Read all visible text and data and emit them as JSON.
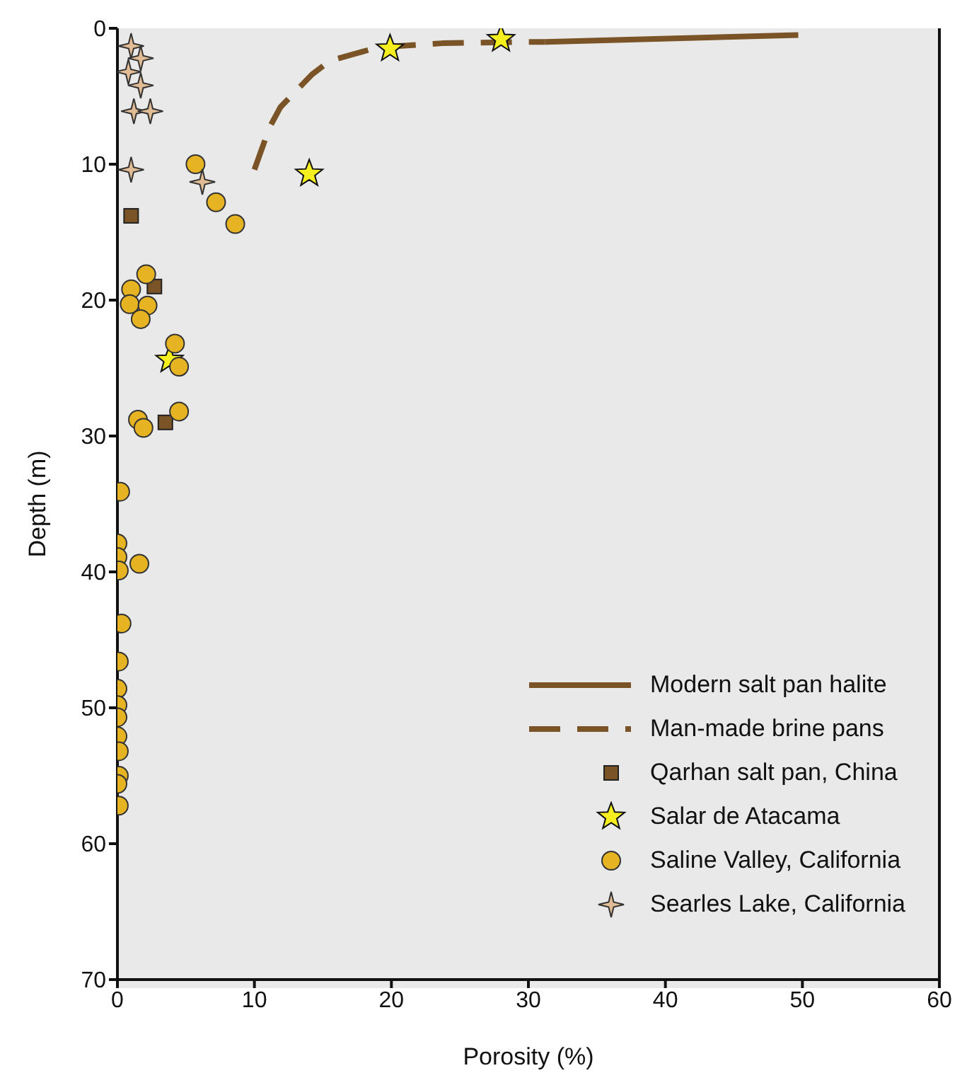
{
  "chart_data": {
    "type": "scatter",
    "xlabel": "Porosity (%)",
    "ylabel": "Depth (m)",
    "xlim": [
      0,
      60
    ],
    "xticks": [
      0,
      10,
      20,
      30,
      40,
      50,
      60
    ],
    "ylim": [
      70,
      0
    ],
    "yticks": [
      0,
      10,
      20,
      30,
      40,
      50,
      60,
      70
    ],
    "grid": false,
    "legend": "bottom right",
    "series": [
      {
        "name": "Modern salt pan halite",
        "type": "line",
        "line_style": "solid",
        "marker": "none",
        "color": "#7a5327",
        "x": [
          31.2,
          49.7
        ],
        "values": [
          1.0,
          0.5
        ]
      },
      {
        "name": "Man-made brine pans",
        "type": "line",
        "line_style": "dashed",
        "marker": "none",
        "color": "#7a5327",
        "x": [
          10.0,
          11.1,
          11.9,
          14.2,
          15.5,
          19,
          23.7,
          29.7,
          31.2
        ],
        "values": [
          10.4,
          7.3,
          5.8,
          3.4,
          2.4,
          1.4,
          1.1,
          1.0,
          1.0
        ]
      },
      {
        "name": "Qarhan salt pan, China",
        "marker": "square",
        "color": "#7a5327",
        "x": [
          1.0,
          2.7,
          3.5
        ],
        "values": [
          13.8,
          19.0,
          29.0
        ]
      },
      {
        "name": "Salar de Atacama",
        "marker": "star",
        "color": "#f5ef1f",
        "x": [
          19.9,
          28,
          14,
          3.8
        ],
        "values": [
          1.5,
          0.8,
          10.7,
          24.4
        ]
      },
      {
        "name": "Saline Valley, California",
        "marker": "circle",
        "color": "#e6b422",
        "x": [
          5.7,
          7.2,
          8.6,
          2.1,
          1.0,
          0.9,
          2.2,
          1.7,
          4.2,
          4.5,
          4.5,
          1.5,
          1.9,
          0.2,
          0,
          0,
          0.1,
          1.6,
          0.3,
          0.1,
          0,
          0,
          0,
          0,
          0.1,
          0.1,
          0,
          0.1
        ],
        "values": [
          10.0,
          12.8,
          14.4,
          18.1,
          19.2,
          20.3,
          20.4,
          21.4,
          23.2,
          24.9,
          28.2,
          28.8,
          29.4,
          34.1,
          37.9,
          38.9,
          39.9,
          39.4,
          43.8,
          46.6,
          48.6,
          49.8,
          50.7,
          52.1,
          53.2,
          55.0,
          55.6,
          57.2
        ]
      },
      {
        "name": "Searles Lake, California",
        "marker": "cross",
        "color": "#e2bc94",
        "x": [
          1.0,
          1.7,
          0.8,
          1.7,
          1.2,
          2.4,
          1.0,
          6.2
        ],
        "values": [
          1.3,
          2.2,
          3.2,
          4.2,
          6.1,
          6.1,
          10.4,
          11.3
        ]
      }
    ]
  }
}
